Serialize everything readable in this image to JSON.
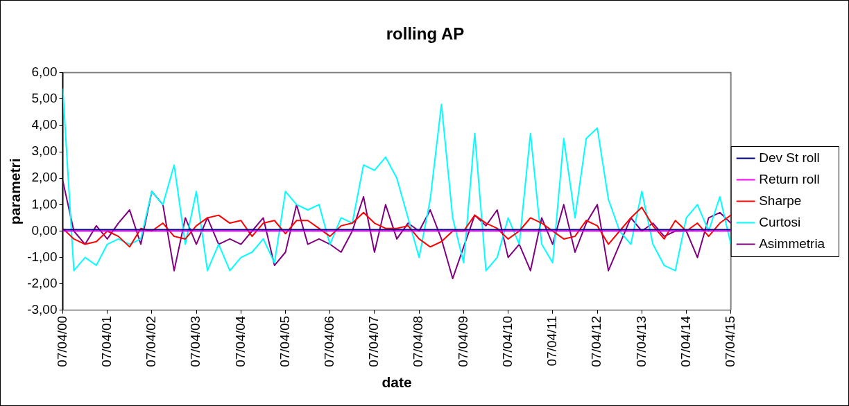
{
  "chart_data": {
    "type": "line",
    "title": "rolling AP",
    "xlabel": "date",
    "ylabel": "parametri",
    "x": [
      "2000-04-07",
      "2000-07-07",
      "2000-10-07",
      "2001-01-07",
      "2001-04-07",
      "2001-07-07",
      "2001-10-07",
      "2002-01-07",
      "2002-04-07",
      "2002-07-07",
      "2002-10-07",
      "2003-01-07",
      "2003-04-07",
      "2003-07-07",
      "2003-10-07",
      "2004-01-07",
      "2004-04-07",
      "2004-07-07",
      "2004-10-07",
      "2005-01-07",
      "2005-04-07",
      "2005-07-07",
      "2005-10-07",
      "2006-01-07",
      "2006-04-07",
      "2006-07-07",
      "2006-10-07",
      "2007-01-07",
      "2007-04-07",
      "2007-07-07",
      "2007-10-07",
      "2008-01-07",
      "2008-04-07",
      "2008-07-07",
      "2008-10-07",
      "2009-01-07",
      "2009-04-07",
      "2009-07-07",
      "2009-10-07",
      "2010-01-07",
      "2010-04-07",
      "2010-07-07",
      "2010-10-07",
      "2011-01-07",
      "2011-04-07",
      "2011-07-07",
      "2011-10-07",
      "2012-01-07",
      "2012-04-07",
      "2012-07-07",
      "2012-10-07",
      "2013-01-07",
      "2013-04-07",
      "2013-07-07",
      "2013-10-07",
      "2014-01-07",
      "2014-04-07",
      "2014-07-07",
      "2014-10-07",
      "2015-01-07",
      "2015-04-07"
    ],
    "series": [
      {
        "name": "Dev St roll",
        "color": "#000080",
        "x": [
          "2000-04-07",
          "2015-04-07"
        ],
        "values": [
          0.05,
          0.05
        ]
      },
      {
        "name": "Return roll",
        "color": "#ff00ff",
        "x": [
          "2000-04-07",
          "2015-04-07"
        ],
        "values": [
          0,
          0
        ]
      },
      {
        "name": "Sharpe",
        "color": "#ff0000",
        "values": [
          0.1,
          -0.3,
          -0.5,
          -0.4,
          0,
          -0.2,
          -0.6,
          0.1,
          0,
          0.3,
          -0.2,
          -0.3,
          0.2,
          0.5,
          0.6,
          0.3,
          0.4,
          -0.2,
          0.3,
          0.4,
          -0.1,
          0.4,
          0.4,
          0.1,
          -0.2,
          0.2,
          0.3,
          0.7,
          0.3,
          0.1,
          0.1,
          0.2,
          -0.3,
          -0.6,
          -0.4,
          0,
          0,
          0.6,
          0.3,
          0.1,
          -0.3,
          0,
          0.5,
          0.3,
          0,
          -0.3,
          -0.2,
          0.4,
          0.2,
          -0.5,
          0,
          0.5,
          0.9,
          0.2,
          -0.3,
          0.4,
          0,
          0.3,
          -0.2,
          0.3,
          0.6
        ]
      },
      {
        "name": "Curtosi",
        "color": "#00ffff",
        "values": [
          5.4,
          -1.5,
          -1,
          -1.3,
          -0.5,
          -0.3,
          -0.5,
          -0.3,
          1.5,
          1,
          2.5,
          -0.5,
          1.5,
          -1.5,
          -0.5,
          -1.5,
          -1,
          -0.8,
          -0.3,
          -1.2,
          1.5,
          1,
          0.8,
          1,
          -0.5,
          0.5,
          0.3,
          2.5,
          2.3,
          2.8,
          2,
          0.5,
          -1,
          1.2,
          4.8,
          0.5,
          -1.2,
          3.7,
          -1.5,
          -1,
          0.5,
          -0.5,
          3.7,
          -0.5,
          -1.2,
          3.5,
          0.5,
          3.5,
          3.9,
          1.2,
          0,
          -0.5,
          1.5,
          -0.5,
          -1.3,
          -1.5,
          0.5,
          1,
          0,
          1.3,
          -0.5
        ]
      },
      {
        "name": "Asimmetria",
        "color": "#800080",
        "values": [
          1.9,
          0,
          -0.5,
          0.2,
          -0.3,
          0.3,
          0.8,
          -0.5,
          1.5,
          1,
          -1.5,
          0.5,
          -0.5,
          0.5,
          -0.5,
          -0.3,
          -0.5,
          0,
          0.5,
          -1.3,
          -0.8,
          1,
          -0.5,
          -0.3,
          -0.5,
          -0.8,
          0,
          1.3,
          -0.8,
          1,
          -0.3,
          0.3,
          0,
          0.8,
          -0.3,
          -1.8,
          -0.6,
          0.6,
          0.2,
          0.8,
          -1,
          -0.5,
          -1.5,
          0.5,
          -0.5,
          1,
          -0.8,
          0.3,
          1,
          -1.5,
          -0.5,
          0.5,
          0,
          0.3,
          -0.2,
          0,
          0,
          -1,
          0.5,
          0.7,
          0.3
        ]
      }
    ],
    "xlim": [
      "2000-04-07",
      "2015-04-07"
    ],
    "xticks": [
      {
        "value": "2000-04-07",
        "label": "07/04/00"
      },
      {
        "value": "2001-04-07",
        "label": "07/04/01"
      },
      {
        "value": "2002-04-07",
        "label": "07/04/02"
      },
      {
        "value": "2003-04-07",
        "label": "07/04/03"
      },
      {
        "value": "2004-04-07",
        "label": "07/04/04"
      },
      {
        "value": "2005-04-07",
        "label": "07/04/05"
      },
      {
        "value": "2006-04-07",
        "label": "07/04/06"
      },
      {
        "value": "2007-04-07",
        "label": "07/04/07"
      },
      {
        "value": "2008-04-07",
        "label": "07/04/08"
      },
      {
        "value": "2009-04-07",
        "label": "07/04/09"
      },
      {
        "value": "2010-04-07",
        "label": "07/04/10"
      },
      {
        "value": "2011-04-07",
        "label": "07/04/11"
      },
      {
        "value": "2012-04-07",
        "label": "07/04/12"
      },
      {
        "value": "2013-04-07",
        "label": "07/04/13"
      },
      {
        "value": "2014-04-07",
        "label": "07/04/14"
      },
      {
        "value": "2015-04-07",
        "label": "07/04/15"
      }
    ],
    "ylim": [
      -3,
      6
    ],
    "yticks": [
      {
        "value": -3,
        "label": "-3,00"
      },
      {
        "value": -2,
        "label": "-2,00"
      },
      {
        "value": -1,
        "label": "-1,00"
      },
      {
        "value": 0,
        "label": "0,00"
      },
      {
        "value": 1,
        "label": "1,00"
      },
      {
        "value": 2,
        "label": "2,00"
      },
      {
        "value": 3,
        "label": "3,00"
      },
      {
        "value": 4,
        "label": "4,00"
      },
      {
        "value": 5,
        "label": "5,00"
      },
      {
        "value": 6,
        "label": "6,00"
      }
    ],
    "grid": false,
    "legend": "right",
    "marker": "none",
    "line_style": "solid"
  }
}
